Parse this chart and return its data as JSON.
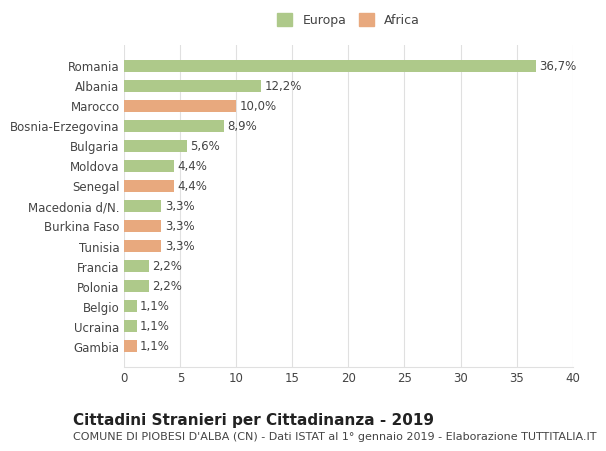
{
  "categories": [
    "Romania",
    "Albania",
    "Marocco",
    "Bosnia-Erzegovina",
    "Bulgaria",
    "Moldova",
    "Senegal",
    "Macedonia d/N.",
    "Burkina Faso",
    "Tunisia",
    "Francia",
    "Polonia",
    "Belgio",
    "Ucraina",
    "Gambia"
  ],
  "values": [
    36.7,
    12.2,
    10.0,
    8.9,
    5.6,
    4.4,
    4.4,
    3.3,
    3.3,
    3.3,
    2.2,
    2.2,
    1.1,
    1.1,
    1.1
  ],
  "continents": [
    "Europa",
    "Europa",
    "Africa",
    "Europa",
    "Europa",
    "Europa",
    "Africa",
    "Europa",
    "Africa",
    "Africa",
    "Europa",
    "Europa",
    "Europa",
    "Europa",
    "Africa"
  ],
  "labels": [
    "36,7%",
    "12,2%",
    "10,0%",
    "8,9%",
    "5,6%",
    "4,4%",
    "4,4%",
    "3,3%",
    "3,3%",
    "3,3%",
    "2,2%",
    "2,2%",
    "1,1%",
    "1,1%",
    "1,1%"
  ],
  "europa_color": "#aec98a",
  "africa_color": "#e8a97e",
  "background_color": "#ffffff",
  "grid_color": "#e0e0e0",
  "title": "Cittadini Stranieri per Cittadinanza - 2019",
  "subtitle": "COMUNE DI PIOBESI D'ALBA (CN) - Dati ISTAT al 1° gennaio 2019 - Elaborazione TUTTITALIA.IT",
  "xlim": [
    0,
    40
  ],
  "xticks": [
    0,
    5,
    10,
    15,
    20,
    25,
    30,
    35,
    40
  ],
  "legend_labels": [
    "Europa",
    "Africa"
  ],
  "title_fontsize": 11,
  "subtitle_fontsize": 8,
  "label_fontsize": 8.5,
  "tick_fontsize": 8.5
}
